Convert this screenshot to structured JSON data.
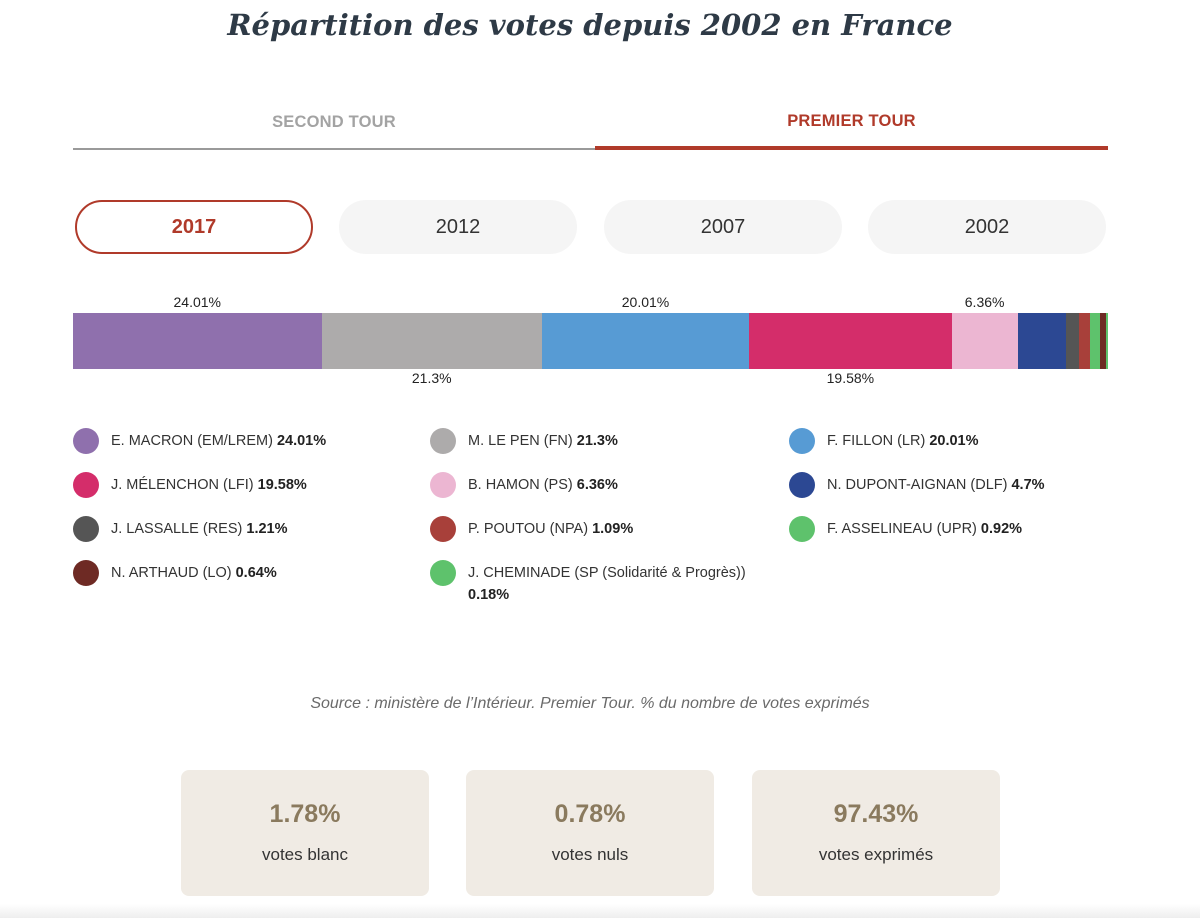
{
  "title": "Répartition des votes depuis 2002 en France",
  "tabs": {
    "second": "SECOND TOUR",
    "first": "PREMIER TOUR",
    "active": "first"
  },
  "years": [
    "2017",
    "2012",
    "2007",
    "2002"
  ],
  "active_year": "2017",
  "source": "Source : ministère de l’Intérieur. Premier Tour. % du nombre de votes exprimés",
  "stats": [
    {
      "value": "1.78%",
      "label": "votes blanc"
    },
    {
      "value": "0.78%",
      "label": "votes nuls"
    },
    {
      "value": "97.43%",
      "label": "votes exprimés"
    }
  ],
  "chart_data": {
    "type": "bar",
    "orientation": "horizontal-stacked",
    "title": "Répartition des votes depuis 2002 en France",
    "year": "2017",
    "round": "PREMIER TOUR",
    "series": [
      {
        "name": "E. MACRON (EM/LREM)",
        "value": 24.01,
        "color": "#8f70ad",
        "bar_label": "24.01%",
        "label_pos": "above"
      },
      {
        "name": "M. LE PEN (FN)",
        "value": 21.3,
        "color": "#adabab",
        "bar_label": "21.3%",
        "label_pos": "below"
      },
      {
        "name": "F. FILLON (LR)",
        "value": 20.01,
        "color": "#579bd4",
        "bar_label": "20.01%",
        "label_pos": "above"
      },
      {
        "name": "J. MÉLENCHON (LFI)",
        "value": 19.58,
        "color": "#d42d6a",
        "bar_label": "19.58%",
        "label_pos": "below"
      },
      {
        "name": "B. HAMON (PS)",
        "value": 6.36,
        "color": "#ecb6d2",
        "bar_label": "6.36%",
        "label_pos": "above"
      },
      {
        "name": "N. DUPONT-AIGNAN (DLF)",
        "value": 4.7,
        "color": "#2c4893",
        "bar_label": "",
        "label_pos": "none"
      },
      {
        "name": "J. LASSALLE (RES)",
        "value": 1.21,
        "color": "#555555",
        "bar_label": "",
        "label_pos": "none"
      },
      {
        "name": "P. POUTOU (NPA)",
        "value": 1.09,
        "color": "#a8403a",
        "bar_label": "",
        "label_pos": "none"
      },
      {
        "name": "F. ASSELINEAU (UPR)",
        "value": 0.92,
        "color": "#5ec26c",
        "bar_label": "",
        "label_pos": "none"
      },
      {
        "name": "N. ARTHAUD (LO)",
        "value": 0.64,
        "color": "#6e2a24",
        "bar_label": "",
        "label_pos": "none"
      },
      {
        "name": "J. CHEMINADE (SP (Solidarité & Progrès))",
        "value": 0.18,
        "color": "#5ec26c",
        "bar_label": "",
        "label_pos": "none"
      }
    ],
    "legend_values": [
      "24.01%",
      "21.3%",
      "20.01%",
      "19.58%",
      "6.36%",
      "4.7%",
      "1.21%",
      "1.09%",
      "0.92%",
      "0.64%",
      "0.18%"
    ],
    "legend_columns": 3
  }
}
